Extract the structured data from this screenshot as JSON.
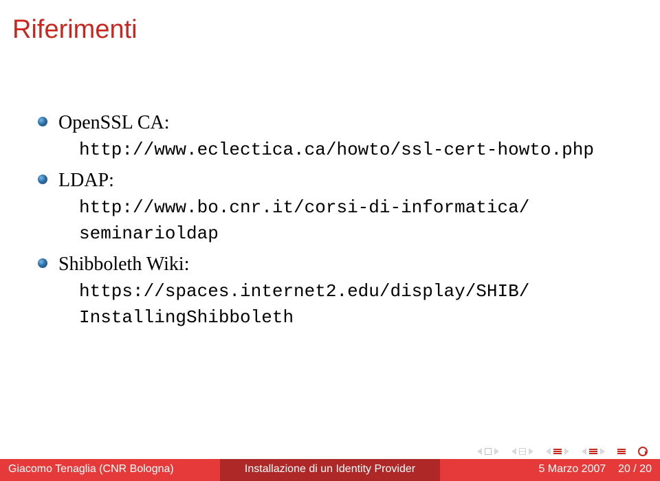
{
  "title": "Riferimenti",
  "title_color": "#c9271e",
  "bullets": [
    {
      "label": "OpenSSL CA:",
      "url": "http://www.eclectica.ca/howto/ssl-cert-howto.php"
    },
    {
      "label": "LDAP:",
      "url_line1": "http://www.bo.cnr.it/corsi-di-informatica/",
      "url_line2": "seminarioldap"
    },
    {
      "label": "Shibboleth Wiki:",
      "url_line1": "https://spaces.internet2.edu/display/SHIB/",
      "url_line2": "InstallingShibboleth"
    }
  ],
  "footer": {
    "author": "Giacomo Tenaglia (CNR Bologna)",
    "title": "Installazione di un Identity Provider",
    "date": "5 Marzo 2007",
    "page_current": "20",
    "page_total": "20"
  },
  "colors": {
    "title": "#c9271e",
    "text": "#000000",
    "footer_outer": "#e63a3a",
    "footer_inner": "#ae2828",
    "bullet_dark": "#1a4a7a",
    "bullet_light": "#7ab8e6"
  }
}
